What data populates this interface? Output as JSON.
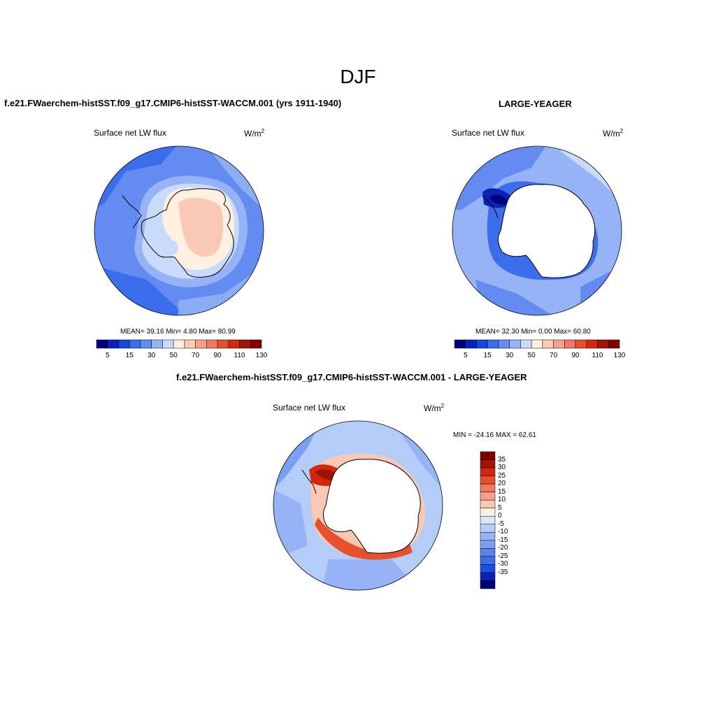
{
  "figure": {
    "title": "DJF"
  },
  "panels": [
    {
      "title": "f.e21.FWaerchem-histSST.f09_g17.CMIP6-histSST-WACCM.001 (yrs 1911-1940)",
      "left_label": "Surface net LW flux",
      "units": "W/m",
      "units_sup": "2",
      "stats": "MEAN=  39.16  Min=   4.80  Max=  80.99",
      "colorbar_ticks": [
        "5",
        "15",
        "30",
        "50",
        "70",
        "90",
        "110",
        "130"
      ]
    },
    {
      "title": "LARGE-YEAGER",
      "left_label": "Surface net LW flux",
      "units": "W/m",
      "units_sup": "2",
      "stats": "MEAN=  32.30  Min=   0.00  Max=  60.80",
      "colorbar_ticks": [
        "5",
        "15",
        "30",
        "50",
        "70",
        "90",
        "110",
        "130"
      ]
    },
    {
      "title": "f.e21.FWaerchem-histSST.f09_g17.CMIP6-histSST-WACCM.001 - LARGE-YEAGER",
      "left_label": "Surface net LW flux",
      "units": "W/m",
      "units_sup": "2",
      "stats": "MIN = -24.16 MAX =  62.61",
      "colorbar_ticks": [
        "35",
        "30",
        "25",
        "20",
        "15",
        "10",
        "5",
        "0",
        "-5",
        "-10",
        "-15",
        "-20",
        "-25",
        "-30",
        "-35"
      ]
    }
  ],
  "colors": {
    "abs_scale": [
      "#00007f",
      "#0a23b5",
      "#1446dc",
      "#3c6eeb",
      "#648cf0",
      "#96b4f5",
      "#c8dcfa",
      "#fff0e1",
      "#fac8b4",
      "#f5a08c",
      "#f07864",
      "#e6502d",
      "#d2280f",
      "#a01405",
      "#800000"
    ],
    "diff_scale": [
      "#800000",
      "#a01405",
      "#d2280f",
      "#e6502d",
      "#f07864",
      "#f5a08c",
      "#fac8b4",
      "#fff0e1",
      "#d8e8fa",
      "#b4cdf8",
      "#96b4f5",
      "#7aa0f2",
      "#5a82ec",
      "#3c6eeb",
      "#1e50e0",
      "#0a23b5",
      "#00007f"
    ]
  }
}
